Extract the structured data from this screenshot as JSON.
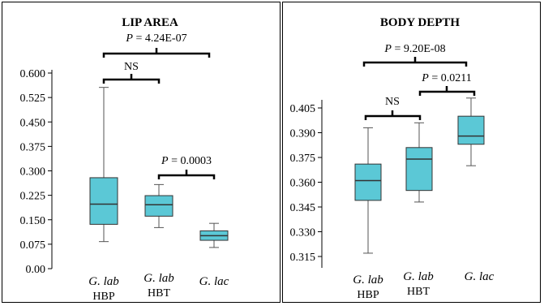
{
  "chart_data": [
    {
      "type": "boxplot",
      "title": "LIP AREA",
      "ylim": [
        0,
        0.6
      ],
      "yticks": [
        "0.600",
        "0.525",
        "0.450",
        "0.375",
        "0.300",
        "0.225",
        "0.150",
        "0.075",
        "0.00"
      ],
      "categories": [
        {
          "name": "G. lab",
          "sub": "HBP"
        },
        {
          "name": "G. lab",
          "sub": "HBT"
        },
        {
          "name": "G. lac",
          "sub": ""
        }
      ],
      "boxes": [
        {
          "min": 0.083,
          "q1": 0.136,
          "median": 0.198,
          "q3": 0.279,
          "max": 0.556
        },
        {
          "min": 0.126,
          "q1": 0.161,
          "median": 0.196,
          "q3": 0.224,
          "max": 0.258
        },
        {
          "min": 0.065,
          "q1": 0.087,
          "median": 0.101,
          "q3": 0.116,
          "max": 0.139
        }
      ],
      "annotations": [
        {
          "text_prefix": "P",
          "text_value": " = 4.24E-07"
        },
        {
          "text_prefix": "",
          "text_value": "NS"
        },
        {
          "text_prefix": "P",
          "text_value": " = 0.0003"
        }
      ]
    },
    {
      "type": "boxplot",
      "title": "BODY DEPTH",
      "ylim": [
        0.31,
        0.41
      ],
      "yticks": [
        "0.405",
        "0.390",
        "0.375",
        "0.360",
        "0.345",
        "0.330",
        "0.315"
      ],
      "categories": [
        {
          "name": "G. lab",
          "sub": "HBP"
        },
        {
          "name": "G. lab",
          "sub": "HBT"
        },
        {
          "name": "G. lac",
          "sub": ""
        }
      ],
      "boxes": [
        {
          "min": 0.317,
          "q1": 0.349,
          "median": 0.361,
          "q3": 0.371,
          "max": 0.393
        },
        {
          "min": 0.348,
          "q1": 0.355,
          "median": 0.374,
          "q3": 0.381,
          "max": 0.396
        },
        {
          "min": 0.37,
          "q1": 0.383,
          "median": 0.388,
          "q3": 0.4,
          "max": 0.411
        }
      ],
      "annotations": [
        {
          "text_prefix": "P",
          "text_value": " = 9.20E-08"
        },
        {
          "text_prefix": "",
          "text_value": "NS"
        },
        {
          "text_prefix": "P",
          "text_value": " = 0.0211"
        }
      ]
    }
  ],
  "colors": {
    "box_fill": "#5bc8d6",
    "box_stroke": "#333333",
    "whisker": "#555555",
    "axis": "#000000",
    "frame": "#000000"
  }
}
